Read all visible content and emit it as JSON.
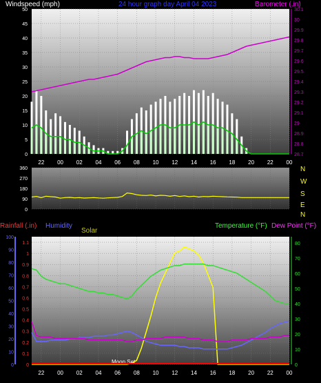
{
  "header": {
    "windspeed_label": "Windspeed (mph)",
    "date_label": "24 hour graph day   April 04 2023",
    "barometer_label": "Barometer (.in)"
  },
  "x_ticks": [
    "22",
    "00",
    "02",
    "04",
    "06",
    "08",
    "10",
    "12",
    "14",
    "16",
    "18",
    "20",
    "22",
    "00"
  ],
  "colors": {
    "wind_gust": "#ffffff",
    "wind_avg": "#00cc00",
    "wind_fill": "#ccffcc",
    "barometer": "#cc00cc",
    "direction": "#ffff00",
    "temperature": "#33dd33",
    "dewpoint": "#cc00cc",
    "humidity": "#6666ff",
    "solar": "#ffff00",
    "rainfall": "#ff0000"
  },
  "direction_panel": {
    "compass": [
      "N",
      "W",
      "S",
      "E",
      "N"
    ]
  },
  "bottom_panel": {
    "rainfall_label": "Rainfall (.in)",
    "humidity_label": "Humidity",
    "solar_label": "Solar",
    "temperature_label": "Temperature (°F)",
    "dewpoint_label": "Dew Point (°F)",
    "moon_label": "Moon Set"
  },
  "chart_data": [
    {
      "type": "area",
      "panel": "wind_barometer",
      "ylabel": "Windspeed (mph)",
      "ylim": [
        0,
        50
      ],
      "yticks": [
        0,
        5,
        10,
        15,
        20,
        25,
        30,
        35,
        40,
        45,
        50
      ],
      "y2label": "Barometer (.in)",
      "y2lim": [
        28.7,
        30.1
      ],
      "y2ticks": [
        "28.7",
        "28.8",
        "28.9",
        "29",
        "29.1",
        "29.2",
        "29.3",
        "29.4",
        "29.5",
        "29.6",
        "29.7",
        "29.8",
        "29.9",
        "30",
        "30.1"
      ],
      "x": [
        21,
        21.5,
        22,
        22.5,
        23,
        23.5,
        0,
        0.5,
        1,
        1.5,
        2,
        2.5,
        3,
        3.5,
        4,
        4.5,
        5,
        5.5,
        6,
        6.5,
        7,
        7.5,
        8,
        8.5,
        9,
        9.5,
        10,
        10.5,
        11,
        11.5,
        12,
        12.5,
        13,
        13.5,
        14,
        14.5,
        15,
        15.5,
        16,
        16.5,
        17,
        17.5,
        18,
        18.5,
        19,
        19.5,
        20,
        20.5,
        21,
        21.5,
        22,
        22.5,
        23,
        23.5,
        0
      ],
      "series": [
        {
          "name": "gust",
          "values": [
            18,
            22,
            20,
            15,
            12,
            14,
            13,
            11,
            10,
            9,
            8,
            6,
            4,
            3,
            2,
            2,
            1,
            1,
            1,
            2,
            8,
            12,
            14,
            16,
            15,
            17,
            18,
            19,
            20,
            18,
            19,
            20,
            21,
            20,
            22,
            21,
            22,
            20,
            21,
            19,
            18,
            17,
            14,
            12,
            6,
            2,
            0,
            0,
            0,
            0,
            0,
            0,
            0,
            0,
            0
          ]
        },
        {
          "name": "average",
          "values": [
            9,
            10,
            9,
            7,
            6,
            6,
            6,
            5,
            5,
            4,
            4,
            3,
            2,
            1,
            1,
            1,
            0,
            0,
            0,
            1,
            3,
            6,
            7,
            8,
            7,
            8,
            9,
            10,
            10,
            9,
            9,
            10,
            10,
            10,
            11,
            10,
            11,
            10,
            10,
            9,
            9,
            8,
            7,
            5,
            3,
            1,
            0,
            0,
            0,
            0,
            0,
            0,
            0,
            0,
            0
          ]
        },
        {
          "name": "barometer",
          "values": [
            29.3,
            29.31,
            29.32,
            29.33,
            29.34,
            29.35,
            29.36,
            29.37,
            29.38,
            29.39,
            29.4,
            29.41,
            29.42,
            29.42,
            29.43,
            29.44,
            29.45,
            29.46,
            29.47,
            29.49,
            29.51,
            29.53,
            29.55,
            29.57,
            29.59,
            29.6,
            29.61,
            29.62,
            29.63,
            29.63,
            29.64,
            29.64,
            29.63,
            29.63,
            29.62,
            29.62,
            29.62,
            29.62,
            29.63,
            29.64,
            29.65,
            29.66,
            29.68,
            29.7,
            29.72,
            29.74,
            29.75,
            29.76,
            29.77,
            29.78,
            29.79,
            29.8,
            29.81,
            29.82,
            29.83
          ]
        }
      ]
    },
    {
      "type": "line",
      "panel": "wind_direction",
      "ylim": [
        0,
        360
      ],
      "yticks": [
        0,
        90,
        180,
        270,
        360
      ],
      "x": [
        21,
        21.5,
        22,
        22.5,
        23,
        23.5,
        0,
        0.5,
        1,
        1.5,
        2,
        2.5,
        3,
        3.5,
        4,
        4.5,
        5,
        5.5,
        6,
        6.5,
        7,
        7.5,
        8,
        8.5,
        9,
        9.5,
        10,
        10.5,
        11,
        11.5,
        12,
        12.5,
        13,
        13.5,
        14,
        14.5,
        15,
        15.5,
        16,
        16.5,
        17,
        17.5,
        18,
        18.5,
        19,
        19.5,
        20,
        20.5,
        21,
        21.5,
        22,
        22.5,
        23,
        23.5,
        0
      ],
      "series": [
        {
          "name": "direction",
          "values": [
            105,
            110,
            100,
            112,
            108,
            105,
            95,
            100,
            102,
            98,
            100,
            96,
            98,
            100,
            97,
            95,
            98,
            100,
            102,
            110,
            140,
            135,
            125,
            120,
            118,
            122,
            115,
            120,
            118,
            112,
            118,
            110,
            115,
            108,
            112,
            105,
            110,
            108,
            112,
            110,
            108,
            106,
            105,
            104,
            100,
            100,
            100,
            100,
            100,
            100,
            100,
            100,
            100,
            100,
            100
          ]
        }
      ]
    },
    {
      "type": "line",
      "panel": "temperature_humidity_solar_rain",
      "y_left_outer_label": "Humidity",
      "y_left_outer_ticks": [
        0,
        10,
        20,
        30,
        40,
        50,
        60,
        70,
        80,
        90,
        100
      ],
      "y_left_inner_label": "Rainfall (.in)",
      "y_left_inner_ticks": [
        "0",
        "0.1",
        "0.2",
        "0.3",
        "0.4",
        "0.5",
        "0.6",
        "0.7",
        "0.8",
        "0.9",
        "1",
        "1.1"
      ],
      "y_right_label": "Temperature (°F)",
      "y_right_ticks": [
        0,
        10,
        20,
        30,
        40,
        50,
        60,
        70,
        80
      ],
      "x": [
        21,
        21.5,
        22,
        22.5,
        23,
        23.5,
        0,
        0.5,
        1,
        1.5,
        2,
        2.5,
        3,
        3.5,
        4,
        4.5,
        5,
        5.5,
        6,
        6.5,
        7,
        7.5,
        8,
        8.5,
        9,
        9.5,
        10,
        10.5,
        11,
        11.5,
        12,
        12.5,
        13,
        13.5,
        14,
        14.5,
        15,
        15.5,
        16,
        16.5,
        17,
        17.5,
        18,
        18.5,
        19,
        19.5,
        20,
        20.5,
        21,
        21.5,
        22,
        22.5,
        23,
        23.5,
        0
      ],
      "series": [
        {
          "name": "temperature",
          "values": [
            63,
            62,
            58,
            56,
            55,
            54,
            53,
            53,
            52,
            51,
            50,
            49,
            48,
            48,
            47,
            47,
            46,
            46,
            45,
            44,
            43,
            45,
            49,
            52,
            55,
            58,
            60,
            62,
            63,
            64,
            65,
            65,
            66,
            66,
            66,
            66,
            66,
            65,
            65,
            64,
            63,
            62,
            61,
            60,
            58,
            56,
            54,
            52,
            50,
            48,
            45,
            42,
            41,
            40,
            40
          ]
        },
        {
          "name": "dewpoint",
          "values": [
            28,
            19,
            18,
            18,
            18,
            17,
            17,
            17,
            17,
            17,
            17,
            17,
            16,
            16,
            16,
            16,
            16,
            16,
            16,
            16,
            15,
            15,
            16,
            16,
            17,
            17,
            17,
            17,
            18,
            18,
            18,
            18,
            18,
            17,
            17,
            17,
            16,
            16,
            16,
            15,
            15,
            15,
            16,
            16,
            16,
            16,
            17,
            17,
            17,
            17,
            18,
            18,
            18,
            19,
            19
          ]
        },
        {
          "name": "humidity",
          "values": [
            25,
            18,
            18,
            18,
            19,
            19,
            19,
            19,
            20,
            20,
            21,
            21,
            21,
            22,
            22,
            22,
            23,
            23,
            24,
            25,
            26,
            25,
            23,
            21,
            18,
            17,
            16,
            15,
            15,
            15,
            15,
            14,
            14,
            13,
            13,
            13,
            12,
            12,
            12,
            12,
            12,
            12,
            13,
            14,
            15,
            17,
            19,
            21,
            23,
            25,
            28,
            30,
            32,
            33,
            34
          ]
        },
        {
          "name": "solar",
          "values": [
            0,
            0,
            0,
            0,
            0,
            0,
            0,
            0,
            0,
            0,
            0,
            0,
            0,
            0,
            0,
            0,
            0,
            0,
            0,
            0,
            0,
            5,
            20,
            80,
            160,
            240,
            330,
            400,
            450,
            500,
            550,
            560,
            580,
            570,
            560,
            540,
            500,
            440,
            380,
            0,
            0,
            0,
            0,
            0,
            0,
            0,
            0,
            0,
            0,
            0,
            0,
            0,
            0,
            0,
            0
          ]
        },
        {
          "name": "rainfall",
          "values": [
            0,
            0,
            0,
            0,
            0,
            0,
            0,
            0,
            0,
            0,
            0,
            0,
            0,
            0,
            0,
            0,
            0,
            0,
            0,
            0,
            0,
            0,
            0,
            0,
            0,
            0,
            0,
            0,
            0,
            0,
            0,
            0,
            0,
            0,
            0,
            0,
            0,
            0,
            0,
            0,
            0,
            0,
            0,
            0,
            0,
            0,
            0,
            0,
            0,
            0,
            0,
            0,
            0,
            0,
            0
          ]
        }
      ]
    }
  ]
}
